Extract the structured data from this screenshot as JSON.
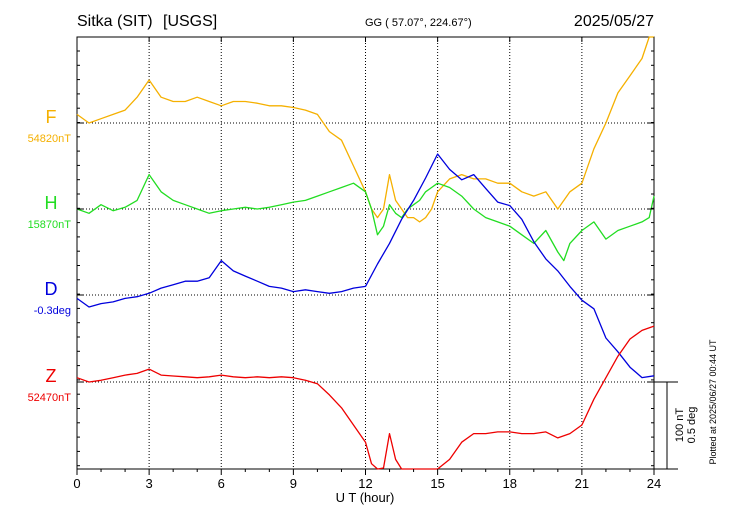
{
  "header": {
    "station": "Sitka (SIT)",
    "source": "[USGS]",
    "gg_label": "GG ( 57.07°, 224.67°)",
    "date": "2025/05/27"
  },
  "side_note": "Plotted at 2025/06/27 00:44 UT",
  "scale_bar": {
    "nt_label": "100 nT",
    "deg_label": "0.5 deg"
  },
  "chart_data": {
    "type": "line",
    "title": "",
    "xlabel": "U T (hour)",
    "ylabel": "",
    "xlim": [
      0,
      24
    ],
    "x_ticks": [
      0,
      3,
      6,
      9,
      12,
      15,
      18,
      21,
      24
    ],
    "x_tick_labels": [
      "0",
      "3",
      "6",
      "9",
      "12",
      "15",
      "18",
      "21",
      "24"
    ],
    "grid": true,
    "scale": "100 nT / 0.5 deg per division",
    "series": [
      {
        "name": "F",
        "baseline_label": "54820nT",
        "color": "#f5b000",
        "baseline_value": 54820,
        "unit": "nT",
        "x": [
          0,
          0.5,
          1,
          1.5,
          2,
          2.5,
          3,
          3.5,
          4,
          4.5,
          5,
          5.5,
          6,
          6.5,
          7,
          7.5,
          8,
          8.5,
          9,
          9.5,
          10,
          10.5,
          11,
          11.5,
          12,
          12.25,
          12.5,
          12.75,
          13,
          13.25,
          13.5,
          13.75,
          14,
          14.25,
          14.5,
          14.75,
          15,
          15.5,
          16,
          16.5,
          17,
          17.5,
          18,
          18.5,
          19,
          19.5,
          20,
          20.5,
          21,
          21.5,
          22,
          22.5,
          23,
          23.5,
          23.8,
          24
        ],
        "y": [
          54830,
          54820,
          54825,
          54830,
          54835,
          54850,
          54870,
          54850,
          54845,
          54845,
          54850,
          54845,
          54840,
          54845,
          54845,
          54843,
          54840,
          54840,
          54838,
          54835,
          54830,
          54810,
          54800,
          54770,
          54740,
          54720,
          54710,
          54720,
          54760,
          54730,
          54720,
          54710,
          54710,
          54705,
          54710,
          54720,
          54740,
          54755,
          54760,
          54755,
          54755,
          54750,
          54750,
          54740,
          54735,
          54740,
          54720,
          54740,
          54750,
          54790,
          54820,
          54855,
          54875,
          54895,
          54935,
          54920
        ]
      },
      {
        "name": "H",
        "baseline_label": "15870nT",
        "color": "#22dd22",
        "baseline_value": 15870,
        "unit": "nT",
        "x": [
          0,
          0.5,
          1,
          1.5,
          2,
          2.5,
          3,
          3.5,
          4,
          4.5,
          5,
          5.5,
          6,
          6.5,
          7,
          7.5,
          8,
          8.5,
          9,
          9.5,
          10,
          10.5,
          11,
          11.5,
          12,
          12.25,
          12.5,
          12.75,
          13,
          13.25,
          13.5,
          13.75,
          14,
          14.25,
          14.5,
          14.75,
          15,
          15.5,
          16,
          16.5,
          17,
          17.5,
          18,
          18.5,
          19,
          19.5,
          20,
          20.25,
          20.5,
          21,
          21.5,
          22,
          22.5,
          23,
          23.5,
          23.8,
          24
        ],
        "y": [
          15870,
          15865,
          15875,
          15868,
          15872,
          15880,
          15910,
          15890,
          15880,
          15875,
          15870,
          15865,
          15868,
          15870,
          15872,
          15870,
          15872,
          15875,
          15878,
          15880,
          15885,
          15890,
          15895,
          15900,
          15890,
          15870,
          15840,
          15850,
          15875,
          15865,
          15860,
          15870,
          15875,
          15880,
          15890,
          15895,
          15900,
          15895,
          15885,
          15870,
          15860,
          15855,
          15850,
          15840,
          15830,
          15845,
          15820,
          15810,
          15830,
          15845,
          15855,
          15835,
          15845,
          15850,
          15855,
          15860,
          15885
        ]
      },
      {
        "name": "D",
        "baseline_label": "-0.3deg",
        "color": "#0000dd",
        "baseline_value": -0.3,
        "unit": "deg",
        "x": [
          0,
          0.5,
          1,
          1.5,
          2,
          2.5,
          3,
          3.5,
          4,
          4.5,
          5,
          5.5,
          6,
          6.5,
          7,
          7.5,
          8,
          8.5,
          9,
          9.5,
          10,
          10.5,
          11,
          11.5,
          12,
          12.5,
          13,
          13.5,
          14,
          14.5,
          15,
          15.5,
          16,
          16.5,
          17,
          17.5,
          18,
          18.5,
          19,
          19.5,
          20,
          20.5,
          21,
          21.5,
          22,
          22.5,
          23,
          23.5,
          24
        ],
        "y": [
          -0.32,
          -0.37,
          -0.35,
          -0.34,
          -0.32,
          -0.31,
          -0.29,
          -0.26,
          -0.24,
          -0.22,
          -0.22,
          -0.2,
          -0.1,
          -0.16,
          -0.19,
          -0.22,
          -0.25,
          -0.26,
          -0.28,
          -0.27,
          -0.28,
          -0.29,
          -0.28,
          -0.26,
          -0.25,
          -0.12,
          0.0,
          0.14,
          0.25,
          0.38,
          0.52,
          0.43,
          0.37,
          0.4,
          0.32,
          0.24,
          0.22,
          0.14,
          0.01,
          -0.09,
          -0.16,
          -0.25,
          -0.33,
          -0.38,
          -0.55,
          -0.63,
          -0.72,
          -0.78,
          -0.77
        ]
      },
      {
        "name": "Z",
        "baseline_label": "52470nT",
        "color": "#ee0000",
        "baseline_value": 52470,
        "unit": "nT",
        "x": [
          0,
          0.5,
          1,
          1.5,
          2,
          2.5,
          3,
          3.5,
          4,
          4.5,
          5,
          5.5,
          6,
          6.5,
          7,
          7.5,
          8,
          8.5,
          9,
          9.5,
          10,
          10.5,
          11,
          11.5,
          12,
          12.25,
          12.5,
          12.75,
          13,
          13.25,
          13.5,
          13.75,
          14,
          14.25,
          14.5,
          14.75,
          15,
          15.5,
          16,
          16.5,
          17,
          17.5,
          18,
          18.5,
          19,
          19.5,
          20,
          20.5,
          21,
          21.5,
          22,
          22.5,
          23,
          23.5,
          24
        ],
        "y": [
          52475,
          52470,
          52472,
          52475,
          52478,
          52480,
          52485,
          52478,
          52477,
          52476,
          52475,
          52476,
          52478,
          52476,
          52475,
          52476,
          52475,
          52476,
          52475,
          52472,
          52468,
          52455,
          52440,
          52420,
          52400,
          52375,
          52350,
          52370,
          52410,
          52380,
          52345,
          52335,
          52325,
          52330,
          52320,
          52328,
          52340,
          52380,
          52400,
          52410,
          52410,
          52412,
          52412,
          52410,
          52410,
          52412,
          52405,
          52410,
          52420,
          52450,
          52475,
          52500,
          52520,
          52530,
          52535
        ]
      }
    ]
  }
}
